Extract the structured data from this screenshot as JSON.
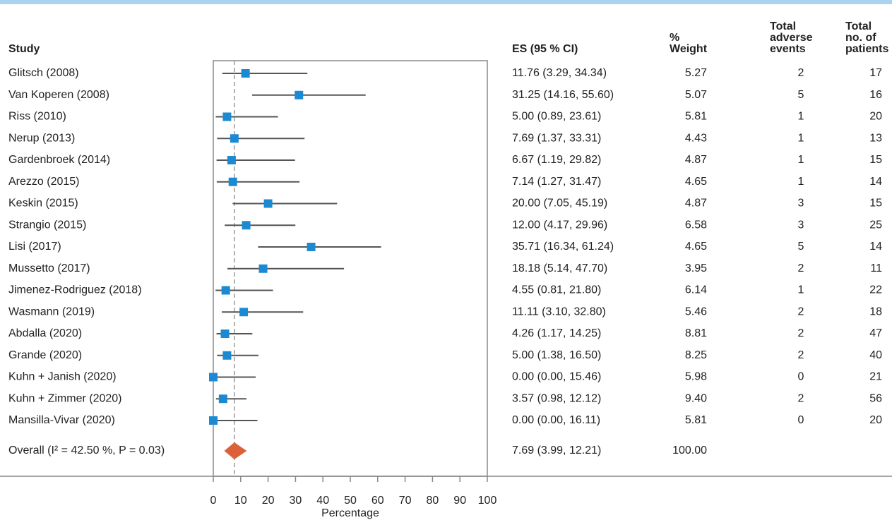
{
  "chart_data": {
    "type": "forest",
    "headers": {
      "study": "Study",
      "es": "ES (95 % CI)",
      "weight": [
        "%",
        "Weight"
      ],
      "events": [
        "Total",
        "adverse",
        "events"
      ],
      "patients": [
        "Total",
        "no. of",
        "patients"
      ]
    },
    "studies": [
      {
        "name": "Glitsch (2008)",
        "es": 11.76,
        "ci_low": 3.29,
        "ci_high": 34.34,
        "es_label": "11.76 (3.29, 34.34)",
        "weight": "5.27",
        "events": 2,
        "patients": 17
      },
      {
        "name": "Van Koperen (2008)",
        "es": 31.25,
        "ci_low": 14.16,
        "ci_high": 55.6,
        "es_label": "31.25 (14.16, 55.60)",
        "weight": "5.07",
        "events": 5,
        "patients": 16
      },
      {
        "name": "Riss (2010)",
        "es": 5,
        "ci_low": 0.89,
        "ci_high": 23.61,
        "es_label": "5.00 (0.89, 23.61)",
        "weight": "5.81",
        "events": 1,
        "patients": 20
      },
      {
        "name": "Nerup (2013)",
        "es": 7.69,
        "ci_low": 1.37,
        "ci_high": 33.31,
        "es_label": "7.69 (1.37, 33.31)",
        "weight": "4.43",
        "events": 1,
        "patients": 13
      },
      {
        "name": "Gardenbroek (2014)",
        "es": 6.67,
        "ci_low": 1.19,
        "ci_high": 29.82,
        "es_label": "6.67 (1.19, 29.82)",
        "weight": "4.87",
        "events": 1,
        "patients": 15
      },
      {
        "name": "Arezzo (2015)",
        "es": 7.14,
        "ci_low": 1.27,
        "ci_high": 31.47,
        "es_label": "7.14 (1.27, 31.47)",
        "weight": "4.65",
        "events": 1,
        "patients": 14
      },
      {
        "name": "Keskin (2015)",
        "es": 20,
        "ci_low": 7.05,
        "ci_high": 45.19,
        "es_label": "20.00 (7.05, 45.19)",
        "weight": "4.87",
        "events": 3,
        "patients": 15
      },
      {
        "name": "Strangio (2015)",
        "es": 12,
        "ci_low": 4.17,
        "ci_high": 29.96,
        "es_label": "12.00 (4.17, 29.96)",
        "weight": "6.58",
        "events": 3,
        "patients": 25
      },
      {
        "name": "Lisi (2017)",
        "es": 35.71,
        "ci_low": 16.34,
        "ci_high": 61.24,
        "es_label": "35.71 (16.34, 61.24)",
        "weight": "4.65",
        "events": 5,
        "patients": 14
      },
      {
        "name": "Mussetto (2017)",
        "es": 18.18,
        "ci_low": 5.14,
        "ci_high": 47.7,
        "es_label": "18.18 (5.14, 47.70)",
        "weight": "3.95",
        "events": 2,
        "patients": 11
      },
      {
        "name": "Jimenez-Rodriguez (2018)",
        "es": 4.55,
        "ci_low": 0.81,
        "ci_high": 21.8,
        "es_label": "4.55 (0.81, 21.80)",
        "weight": "6.14",
        "events": 1,
        "patients": 22
      },
      {
        "name": "Wasmann (2019)",
        "es": 11.11,
        "ci_low": 3.1,
        "ci_high": 32.8,
        "es_label": "11.11 (3.10, 32.80)",
        "weight": "5.46",
        "events": 2,
        "patients": 18
      },
      {
        "name": "Abdalla (2020)",
        "es": 4.26,
        "ci_low": 1.17,
        "ci_high": 14.25,
        "es_label": "4.26 (1.17, 14.25)",
        "weight": "8.81",
        "events": 2,
        "patients": 47
      },
      {
        "name": "Grande (2020)",
        "es": 5,
        "ci_low": 1.38,
        "ci_high": 16.5,
        "es_label": "5.00 (1.38, 16.50)",
        "weight": "8.25",
        "events": 2,
        "patients": 40
      },
      {
        "name": "Kuhn + Janish (2020)",
        "es": 0,
        "ci_low": 0,
        "ci_high": 15.46,
        "es_label": "0.00 (0.00, 15.46)",
        "weight": "5.98",
        "events": 0,
        "patients": 21
      },
      {
        "name": "Kuhn + Zimmer (2020)",
        "es": 3.57,
        "ci_low": 0.98,
        "ci_high": 12.12,
        "es_label": "3.57 (0.98, 12.12)",
        "weight": "9.40",
        "events": 2,
        "patients": 56
      },
      {
        "name": "Mansilla-Vivar (2020)",
        "es": 0,
        "ci_low": 0,
        "ci_high": 16.11,
        "es_label": "0.00 (0.00, 16.11)",
        "weight": "5.81",
        "events": 0,
        "patients": 20
      }
    ],
    "overall": {
      "name": "Overall (I² = 42.50 %, P = 0.03)",
      "es": 7.69,
      "ci_low": 3.99,
      "ci_high": 12.21,
      "es_label": "7.69 (3.99, 12.21)",
      "weight": "100.00"
    },
    "x_label": "Percentage",
    "xlim": [
      0,
      100
    ],
    "xticks": [
      0,
      10,
      20,
      30,
      40,
      50,
      60,
      70,
      80,
      90,
      100
    ],
    "marker_color": "#1b8ad3",
    "ci_color": "#555555",
    "overall_color": "#dc6138",
    "reference_line": true
  }
}
